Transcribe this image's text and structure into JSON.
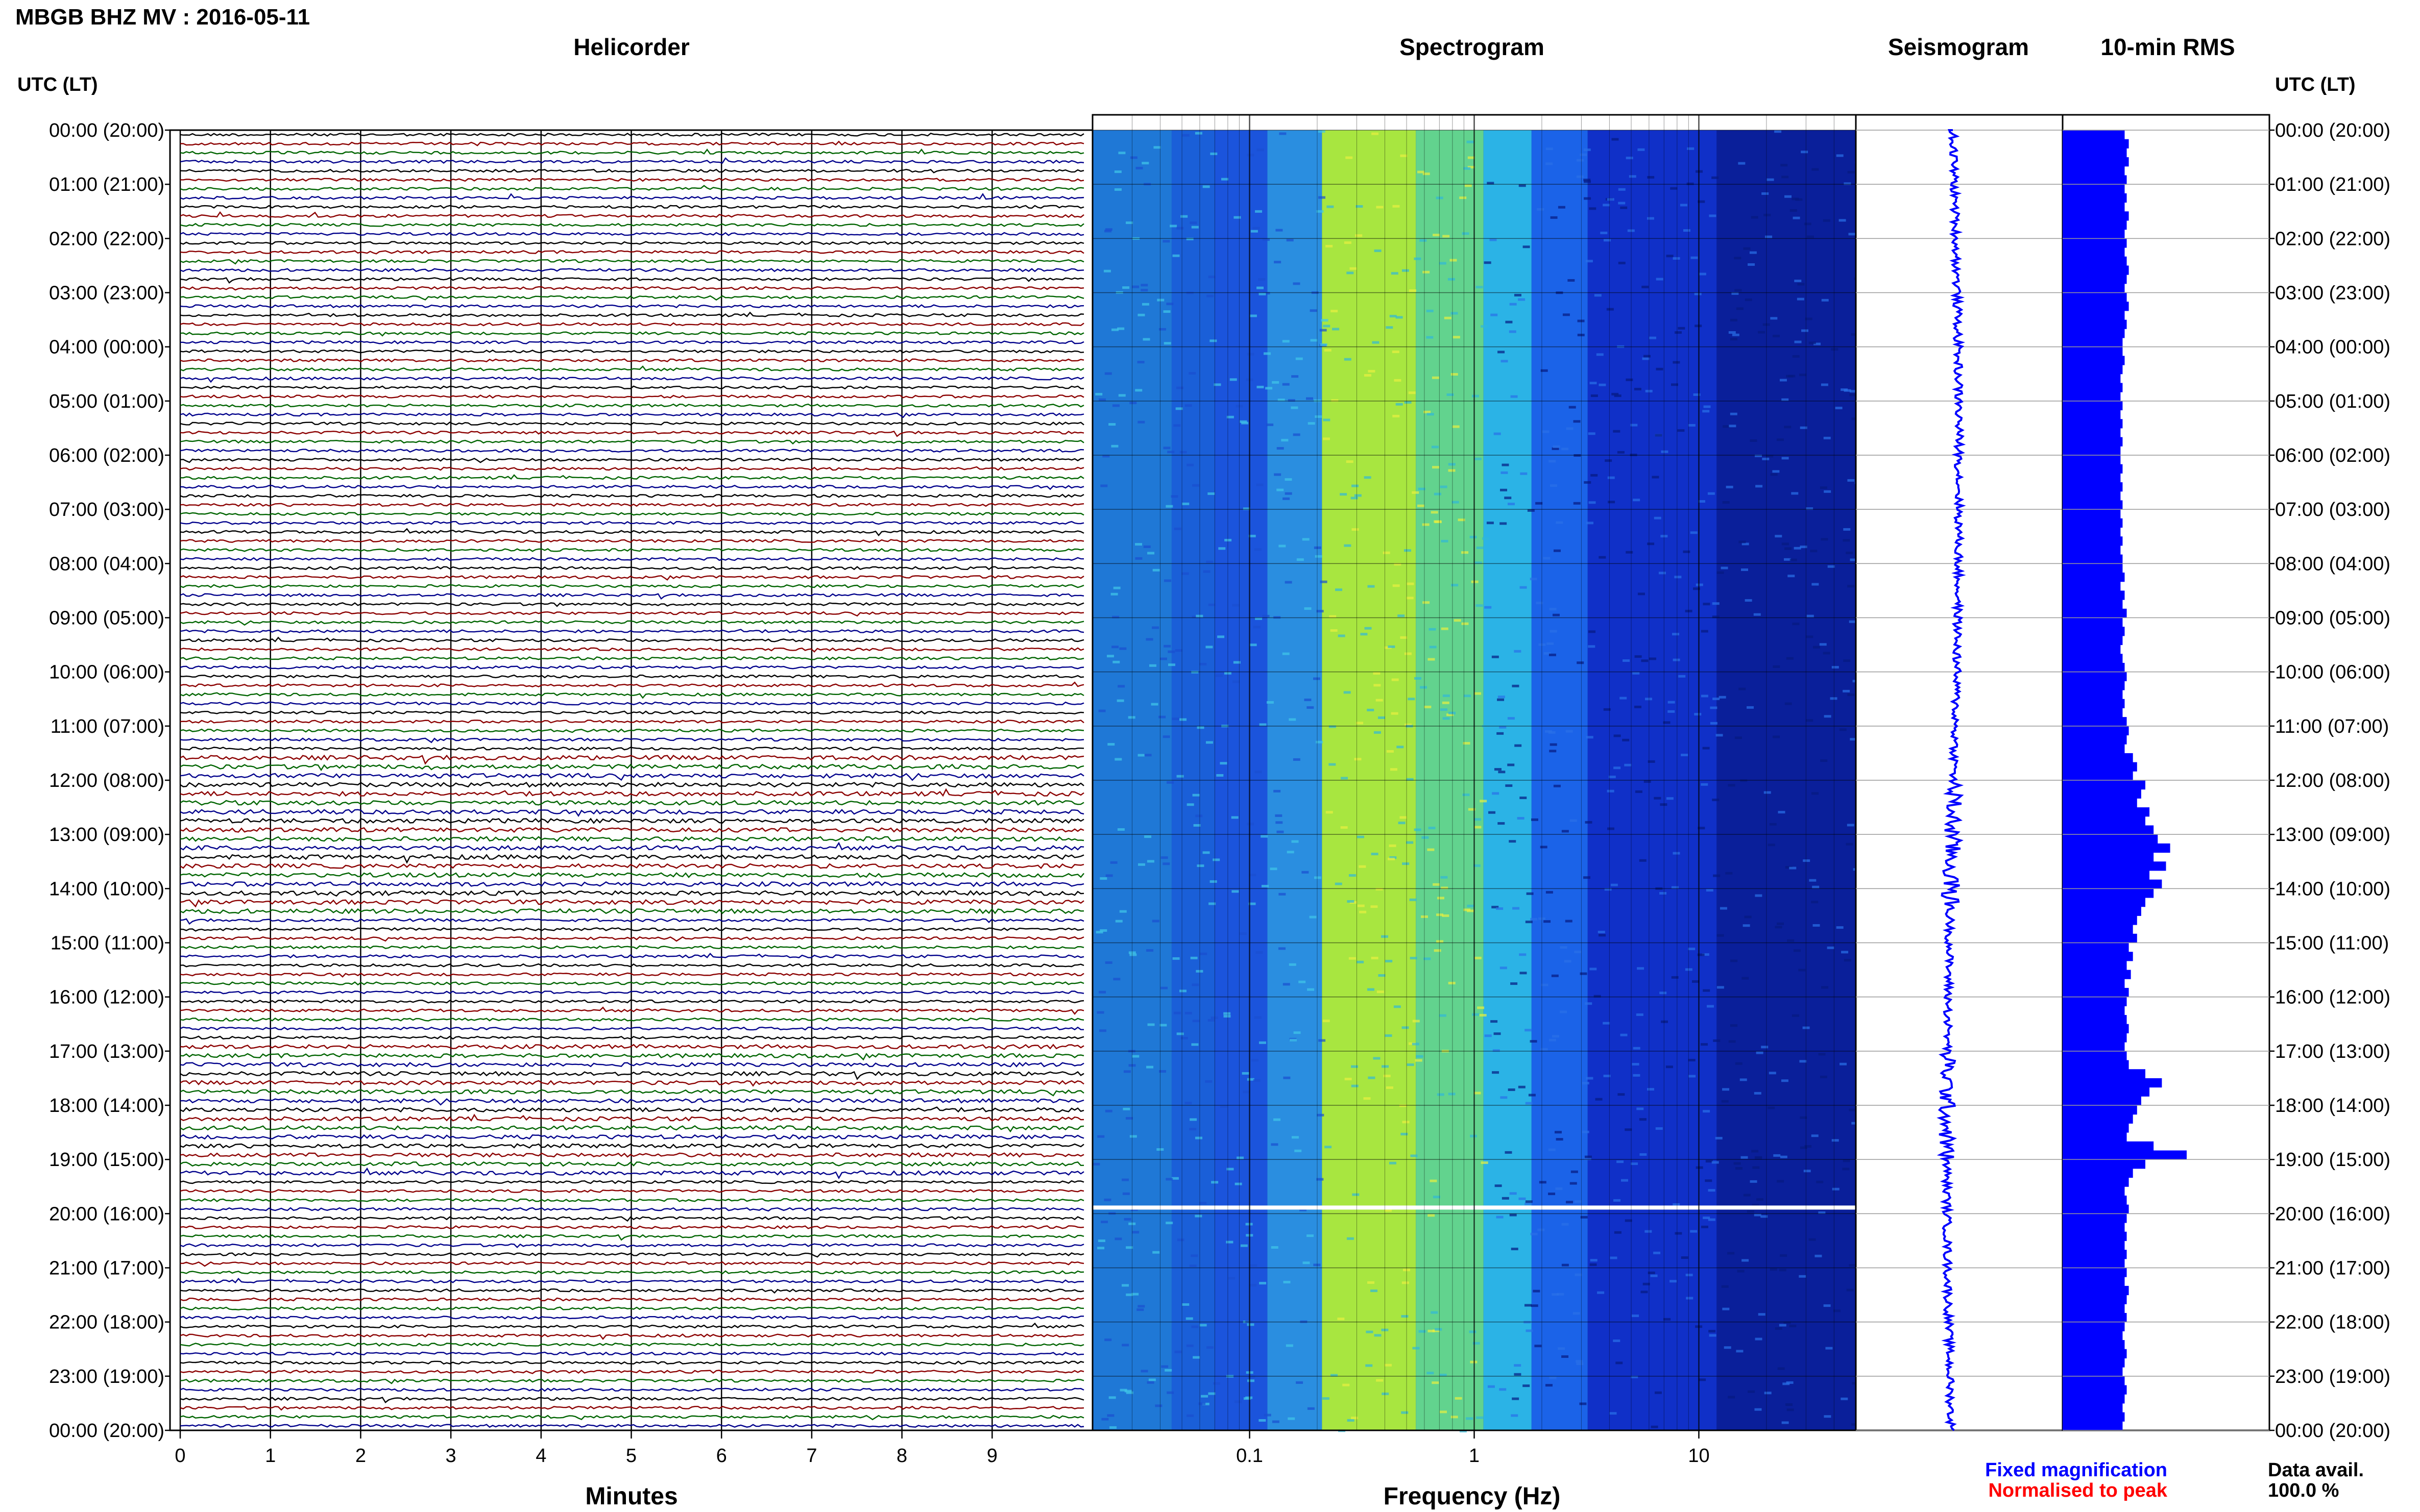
{
  "header": {
    "title": "MBGB BHZ MV : 2016-05-11",
    "utc_lt_left": "UTC (LT)",
    "utc_lt_right": "UTC (LT)"
  },
  "panels": {
    "helicorder": "Helicorder",
    "spectrogram": "Spectrogram",
    "seismogram": "Seismogram",
    "rms": "10-min RMS"
  },
  "axes": {
    "minutes_label": "Minutes",
    "frequency_label": "Frequency (Hz)"
  },
  "legend": {
    "fixed": "Fixed magnification",
    "normalised": "Normalised to peak",
    "fixed_color": "#0000ff",
    "normalised_color": "#ff0000"
  },
  "availability": {
    "label": "Data avail.",
    "value": "100.0 %"
  },
  "colors": {
    "trace_cycle": [
      "#000000",
      "#8b0000",
      "#006400",
      "#00008b"
    ],
    "rms_bar": "#0000ff",
    "seismo": "#0000ff"
  },
  "chart_data": [
    {
      "type": "line",
      "title": "Helicorder",
      "xlabel": "Minutes",
      "x_ticks": [
        "0",
        "1",
        "2",
        "3",
        "4",
        "5",
        "6",
        "7",
        "8",
        "9"
      ],
      "xlim": [
        0,
        10
      ],
      "y_ticks": [
        "00:00 (20:00)",
        "01:00 (21:00)",
        "02:00 (22:00)",
        "03:00 (23:00)",
        "04:00 (00:00)",
        "05:00 (01:00)",
        "06:00 (02:00)",
        "07:00 (03:00)",
        "08:00 (04:00)",
        "09:00 (05:00)",
        "10:00 (06:00)",
        "11:00 (07:00)",
        "12:00 (08:00)",
        "13:00 (09:00)",
        "14:00 (10:00)",
        "15:00 (11:00)",
        "16:00 (12:00)",
        "17:00 (13:00)",
        "18:00 (14:00)",
        "19:00 (15:00)",
        "20:00 (16:00)",
        "21:00 (17:00)",
        "22:00 (18:00)",
        "23:00 (19:00)",
        "00:00 (20:00)"
      ],
      "lines_per_hour": 6,
      "grid": true
    },
    {
      "type": "heatmap",
      "title": "Spectrogram",
      "xlabel": "Frequency (Hz)",
      "x_scale": "log",
      "x_ticks": [
        "0.1",
        "1",
        "10"
      ],
      "xlim": [
        0.02,
        50
      ],
      "grid": true
    },
    {
      "type": "line",
      "title": "Seismogram",
      "grid": true
    },
    {
      "type": "bar",
      "title": "10-min RMS",
      "values": [
        0.3,
        0.32,
        0.31,
        0.32,
        0.3,
        0.31,
        0.3,
        0.31,
        0.3,
        0.32,
        0.31,
        0.3,
        0.31,
        0.3,
        0.31,
        0.32,
        0.31,
        0.3,
        0.31,
        0.32,
        0.3,
        0.31,
        0.3,
        0.29,
        0.29,
        0.3,
        0.29,
        0.28,
        0.29,
        0.28,
        0.29,
        0.28,
        0.29,
        0.28,
        0.29,
        0.28,
        0.28,
        0.29,
        0.28,
        0.29,
        0.28,
        0.29,
        0.28,
        0.29,
        0.28,
        0.29,
        0.28,
        0.29,
        0.29,
        0.3,
        0.28,
        0.3,
        0.29,
        0.31,
        0.29,
        0.3,
        0.29,
        0.28,
        0.29,
        0.3,
        0.31,
        0.3,
        0.29,
        0.3,
        0.29,
        0.31,
        0.32,
        0.31,
        0.3,
        0.34,
        0.36,
        0.34,
        0.4,
        0.38,
        0.36,
        0.42,
        0.4,
        0.44,
        0.46,
        0.52,
        0.44,
        0.5,
        0.42,
        0.48,
        0.44,
        0.4,
        0.38,
        0.36,
        0.34,
        0.36,
        0.32,
        0.34,
        0.31,
        0.33,
        0.3,
        0.32,
        0.31,
        0.3,
        0.31,
        0.32,
        0.31,
        0.3,
        0.31,
        0.32,
        0.4,
        0.48,
        0.42,
        0.38,
        0.36,
        0.34,
        0.32,
        0.31,
        0.44,
        0.6,
        0.4,
        0.34,
        0.32,
        0.3,
        0.31,
        0.32,
        0.31,
        0.3,
        0.31,
        0.3,
        0.31,
        0.3,
        0.31,
        0.3,
        0.32,
        0.31,
        0.3,
        0.31,
        0.3,
        0.29,
        0.3,
        0.31,
        0.3,
        0.29,
        0.3,
        0.31,
        0.3,
        0.29,
        0.3,
        0.29
      ]
    }
  ]
}
